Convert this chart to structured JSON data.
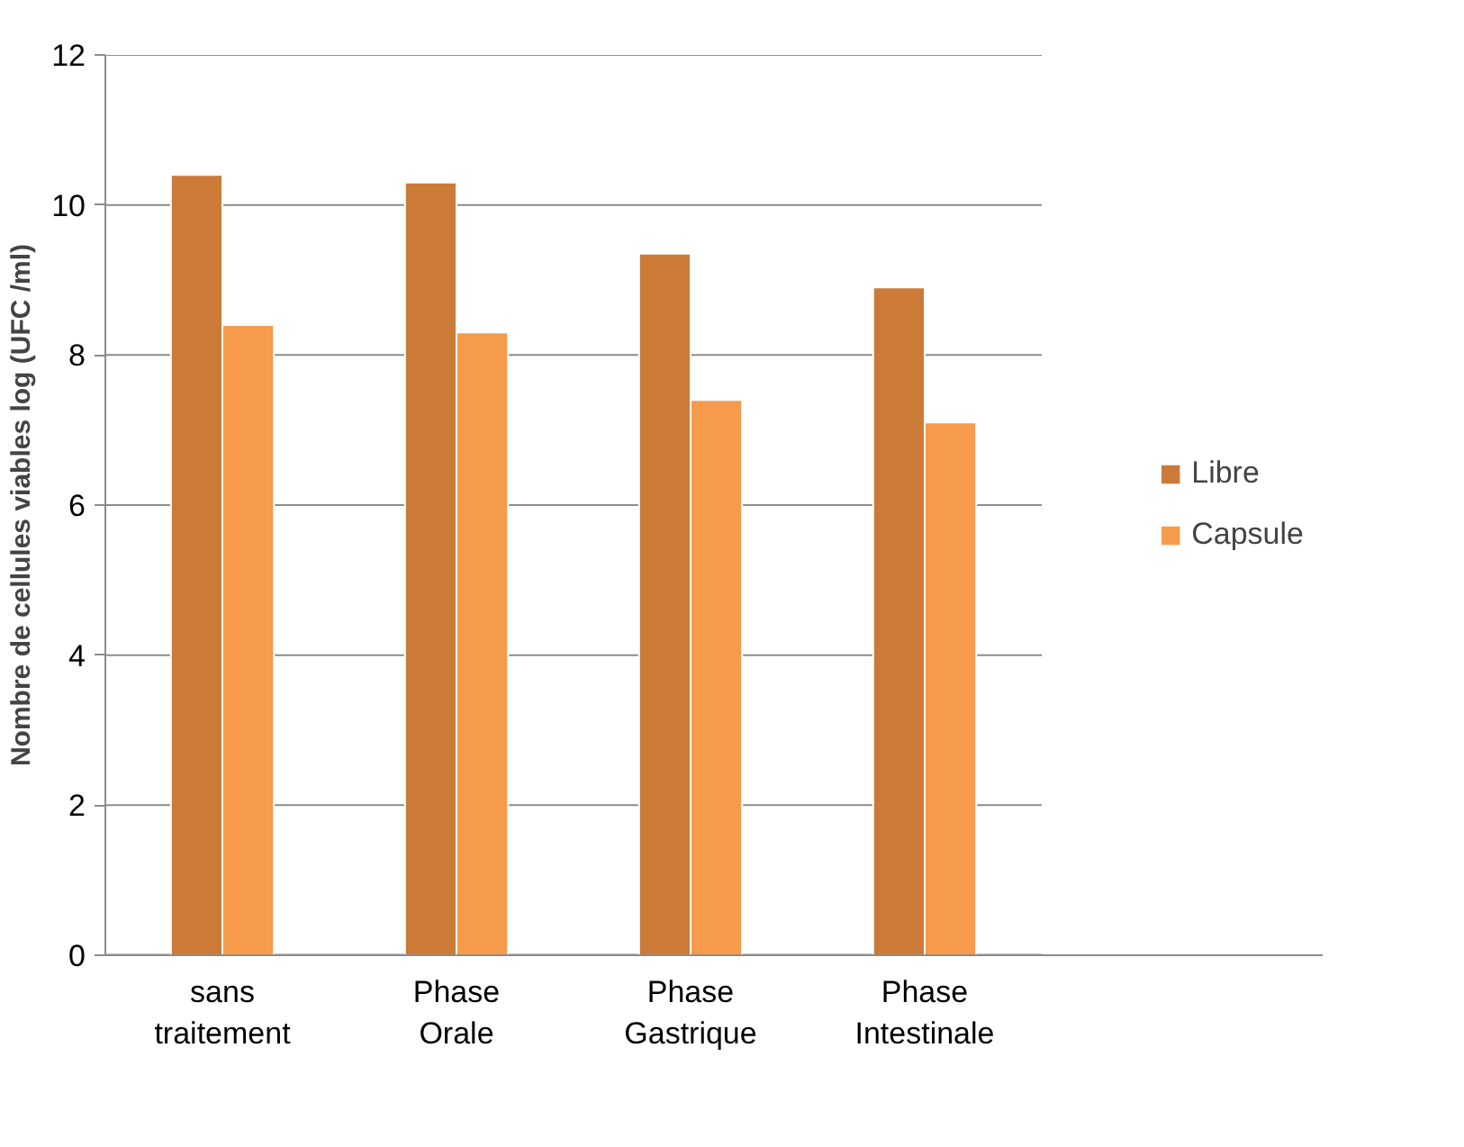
{
  "chart_data": {
    "type": "bar",
    "ylabel": "Nombre de cellules viables log (UFC /ml)",
    "categories": [
      "sans traitement",
      "Phase Orale",
      "Phase Gastrique",
      "Phase Intestinale"
    ],
    "series": [
      {
        "name": "Libre",
        "color": "#cc7a38",
        "values": [
          10.4,
          10.3,
          9.35,
          8.9
        ]
      },
      {
        "name": "Capsule",
        "color": "#f69a4c",
        "values": [
          8.4,
          8.3,
          7.4,
          7.1
        ]
      }
    ],
    "ylim": [
      0,
      12
    ],
    "yticks": [
      0,
      2,
      4,
      6,
      8,
      10,
      12
    ],
    "grid": "y",
    "legend": "right"
  }
}
